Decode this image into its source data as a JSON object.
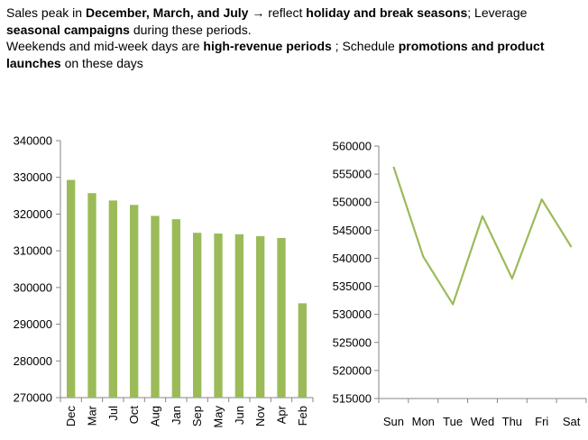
{
  "notes": {
    "line1": {
      "a": "Sales peak in ",
      "b": "December, March, and July",
      "c": " → reflect ",
      "d": "holiday and break seasons",
      "e": "; Leverage"
    },
    "line2": {
      "a": "seasonal campaigns",
      "b": " during these periods."
    },
    "line3": {
      "a": "Weekends and mid-week days are ",
      "b": "high-revenue periods",
      "c": " ; Schedule ",
      "d": "promotions and product"
    },
    "line4": {
      "a": "launches",
      "b": " on these days"
    }
  },
  "chart_data": [
    {
      "type": "bar",
      "categories": [
        "Dec",
        "Mar",
        "Jul",
        "Oct",
        "Aug",
        "Jan",
        "Sep",
        "May",
        "Jun",
        "Nov",
        "Apr",
        "Feb"
      ],
      "values": [
        329300,
        325700,
        323700,
        322500,
        319500,
        318600,
        314900,
        314700,
        314500,
        314000,
        313500,
        295700
      ],
      "ylim": [
        270000,
        340000
      ],
      "yticks": [
        270000,
        280000,
        290000,
        300000,
        310000,
        320000,
        330000,
        340000
      ],
      "title": "",
      "xlabel": "",
      "ylabel": "",
      "color": "#9bbb59",
      "grid": false
    },
    {
      "type": "line",
      "categories": [
        "Sun",
        "Mon",
        "Tue",
        "Wed",
        "Thu",
        "Fri",
        "Sat"
      ],
      "values": [
        556300,
        540300,
        531800,
        547500,
        536400,
        550500,
        542000
      ],
      "ylim": [
        515000,
        560000
      ],
      "yticks": [
        515000,
        520000,
        525000,
        530000,
        535000,
        540000,
        545000,
        550000,
        555000,
        560000
      ],
      "title": "",
      "xlabel": "",
      "ylabel": "",
      "color": "#9bbb59",
      "grid": false
    }
  ]
}
